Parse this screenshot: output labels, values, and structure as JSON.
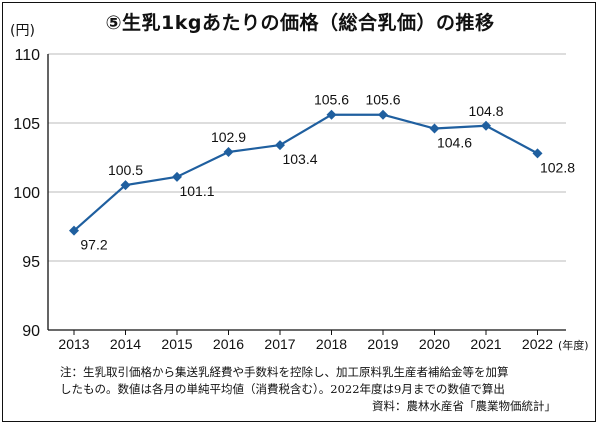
{
  "chart_data": {
    "type": "line",
    "title": "⑤生乳1kgあたりの価格（総合乳価）の推移",
    "ylabel": "(円)",
    "xlabel": "(年度)",
    "categories": [
      "2013",
      "2014",
      "2015",
      "2016",
      "2017",
      "2018",
      "2019",
      "2020",
      "2021",
      "2022"
    ],
    "values": [
      97.2,
      100.5,
      101.1,
      102.9,
      103.4,
      105.6,
      105.6,
      104.6,
      104.8,
      102.8
    ],
    "value_labels": [
      "97.2",
      "100.5",
      "101.1",
      "102.9",
      "103.4",
      "105.6",
      "105.6",
      "104.6",
      "104.8",
      "102.8"
    ],
    "label_side": [
      "below",
      "above",
      "below",
      "above",
      "below",
      "above",
      "above",
      "below",
      "above",
      "below"
    ],
    "yticks": [
      "90",
      "95",
      "100",
      "105",
      "110"
    ],
    "ylim": [
      90,
      110
    ],
    "grid": true,
    "line_color": "#1f5f9f",
    "grid_color": "#bbbbbb"
  },
  "note": {
    "line1": "注：生乳取引価格から集送乳経費や手数料を控除し、加工原料乳生産者補給金等を加算",
    "line2": "したもの。数値は各月の単純平均値（消費税含む）。2022年度は9月までの数値で算出"
  },
  "source": "資料：農林水産省「農業物価統計」"
}
